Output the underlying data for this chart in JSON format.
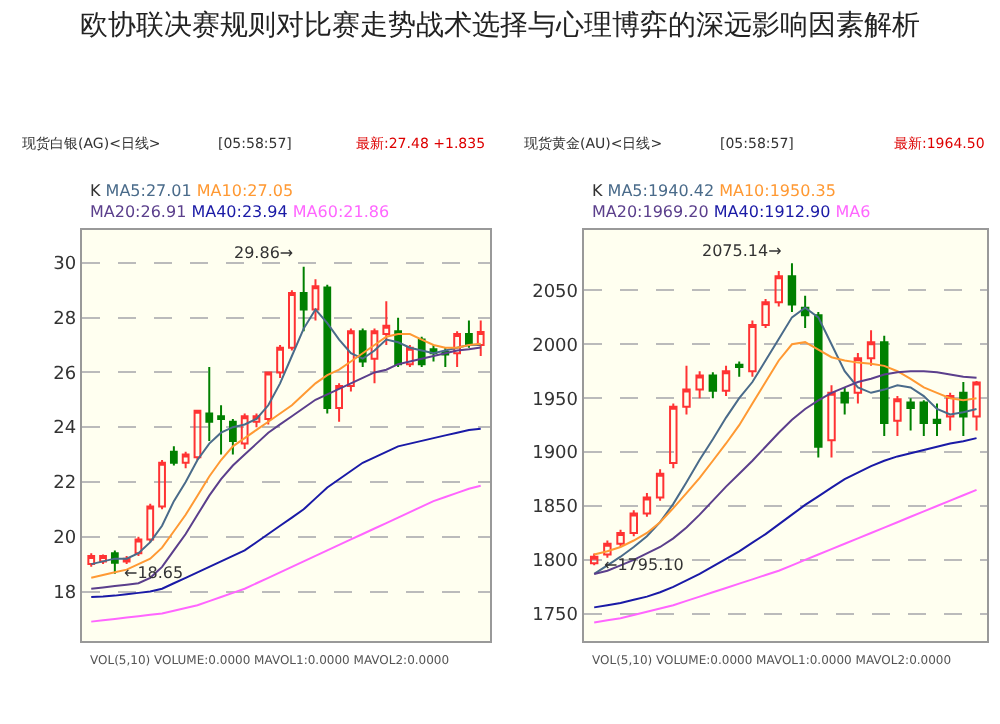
{
  "chart_data": [
    {
      "type": "candlestick",
      "title": "欧协联决赛规则对比赛走势战术选择与心理博弈的深远影响因素解析",
      "categories": [
        null,
        null,
        null,
        null,
        null,
        null,
        null,
        null,
        null,
        null,
        null,
        null,
        null,
        null,
        null,
        null,
        null,
        null,
        null,
        null,
        null,
        null,
        null,
        null,
        null,
        null,
        null,
        null,
        null,
        null,
        null,
        null,
        null,
        null
      ],
      "ohlc": [
        [
          19.0,
          19.4,
          18.9,
          19.3
        ],
        [
          19.1,
          19.35,
          19.0,
          19.3
        ],
        [
          19.4,
          19.5,
          18.65,
          19.05
        ],
        [
          19.1,
          19.3,
          19.0,
          19.2
        ],
        [
          19.4,
          20.0,
          19.3,
          19.9
        ],
        [
          19.9,
          21.2,
          19.8,
          21.1
        ],
        [
          21.1,
          22.8,
          21.0,
          22.7
        ],
        [
          23.1,
          23.3,
          22.6,
          22.7
        ],
        [
          22.7,
          23.1,
          22.5,
          23.0
        ],
        [
          22.9,
          24.6,
          22.8,
          24.6
        ],
        [
          24.5,
          26.2,
          23.5,
          24.2
        ],
        [
          24.4,
          24.8,
          23.0,
          24.3
        ],
        [
          24.2,
          24.3,
          23.0,
          23.5
        ],
        [
          23.4,
          24.5,
          23.2,
          24.4
        ],
        [
          24.2,
          24.5,
          24.0,
          24.4
        ],
        [
          24.3,
          26.0,
          24.1,
          26.0
        ],
        [
          26.0,
          27.0,
          25.8,
          26.9
        ],
        [
          26.9,
          29.0,
          26.8,
          28.9
        ],
        [
          28.9,
          29.86,
          27.5,
          28.3
        ],
        [
          28.3,
          29.4,
          27.9,
          29.15
        ],
        [
          29.1,
          29.2,
          24.5,
          24.7
        ],
        [
          24.7,
          25.6,
          24.2,
          25.5
        ],
        [
          25.5,
          27.6,
          25.3,
          27.5
        ],
        [
          27.5,
          27.6,
          26.2,
          26.4
        ],
        [
          26.5,
          27.6,
          25.6,
          27.5
        ],
        [
          27.4,
          28.6,
          27.0,
          27.7
        ],
        [
          27.5,
          28.0,
          26.2,
          26.3
        ],
        [
          26.3,
          27.0,
          26.2,
          26.9
        ],
        [
          27.2,
          27.3,
          26.2,
          26.3
        ],
        [
          26.85,
          27.0,
          26.4,
          26.7
        ],
        [
          26.75,
          26.9,
          26.2,
          26.65
        ],
        [
          26.7,
          27.5,
          26.2,
          27.4
        ],
        [
          27.4,
          27.9,
          26.9,
          27.0
        ],
        [
          27.0,
          27.9,
          26.6,
          27.48
        ]
      ],
      "colors": [
        "#ff3333",
        "#ff3333",
        "#008000",
        "#ff3333",
        "#ff3333",
        "#ff3333",
        "#ff3333",
        "#008000",
        "#ff3333",
        "#ff3333",
        "#008000",
        "#008000",
        "#008000",
        "#ff3333",
        "#ff3333",
        "#ff3333",
        "#ff3333",
        "#ff3333",
        "#008000",
        "#ff3333",
        "#008000",
        "#ff3333",
        "#ff3333",
        "#008000",
        "#ff3333",
        "#ff3333",
        "#008000",
        "#ff3333",
        "#008000",
        "#008000",
        "#008000",
        "#ff3333",
        "#008000",
        "#ff3333"
      ],
      "series": [
        {
          "type": "line",
          "name": "MA5:27.01",
          "color": "#4a6b8a",
          "values": [
            19.0,
            19.1,
            19.2,
            19.2,
            19.4,
            19.8,
            20.4,
            21.3,
            22.0,
            22.8,
            23.4,
            23.8,
            24.0,
            24.1,
            24.3,
            24.8,
            25.6,
            26.6,
            27.6,
            28.3,
            27.8,
            27.2,
            26.7,
            26.5,
            26.8,
            27.2,
            27.1,
            26.9,
            26.8,
            26.7,
            26.8,
            26.9,
            27.0,
            27.01
          ]
        },
        {
          "type": "line",
          "name": "MA10:27.05",
          "color": "#ff9933",
          "values": [
            18.5,
            18.6,
            18.7,
            18.8,
            19.0,
            19.2,
            19.6,
            20.2,
            20.8,
            21.5,
            22.2,
            22.8,
            23.3,
            23.6,
            23.9,
            24.2,
            24.5,
            24.8,
            25.2,
            25.6,
            25.9,
            26.1,
            26.4,
            26.7,
            27.0,
            27.3,
            27.4,
            27.4,
            27.2,
            27.0,
            26.9,
            26.9,
            27.0,
            27.05
          ]
        },
        {
          "type": "line",
          "name": "MA20:26.91",
          "color": "#5b3f8c",
          "values": [
            18.1,
            18.15,
            18.2,
            18.25,
            18.3,
            18.5,
            18.9,
            19.5,
            20.1,
            20.8,
            21.5,
            22.1,
            22.6,
            23.0,
            23.4,
            23.8,
            24.1,
            24.4,
            24.7,
            25.0,
            25.2,
            25.4,
            25.6,
            25.8,
            26.0,
            26.1,
            26.3,
            26.4,
            26.5,
            26.6,
            26.7,
            26.8,
            26.85,
            26.91
          ]
        },
        {
          "type": "line",
          "name": "MA40:23.94",
          "color": "#1a1aa6",
          "values": [
            17.8,
            17.82,
            17.85,
            17.9,
            17.95,
            18.0,
            18.1,
            18.3,
            18.5,
            18.7,
            18.9,
            19.1,
            19.3,
            19.5,
            19.8,
            20.1,
            20.4,
            20.7,
            21.0,
            21.4,
            21.8,
            22.1,
            22.4,
            22.7,
            22.9,
            23.1,
            23.3,
            23.4,
            23.5,
            23.6,
            23.7,
            23.8,
            23.9,
            23.94
          ]
        },
        {
          "type": "line",
          "name": "MA60:21.86",
          "color": "#ff66ff",
          "values": [
            16.9,
            16.95,
            17.0,
            17.05,
            17.1,
            17.15,
            17.2,
            17.3,
            17.4,
            17.5,
            17.65,
            17.8,
            17.95,
            18.1,
            18.3,
            18.5,
            18.7,
            18.9,
            19.1,
            19.3,
            19.5,
            19.7,
            19.9,
            20.1,
            20.3,
            20.5,
            20.7,
            20.9,
            21.1,
            21.3,
            21.45,
            21.6,
            21.75,
            21.86
          ]
        }
      ],
      "ylim": [
        16.2,
        31.2
      ],
      "yticks": [
        18,
        20,
        22,
        24,
        26,
        28,
        30
      ],
      "grid": "y",
      "tick_labels": "y",
      "annotations": [
        "现货白银(AG)<日线>",
        "[05:58:57]",
        "最新:27.48 +1.835",
        "K",
        "VOL(5,10) VOLUME:0.0000 MAVOL1:0.0000 MAVOL2:0.0000",
        "29.86→",
        "←18.65"
      ]
    },
    {
      "type": "candlestick",
      "categories": [
        null,
        null,
        null,
        null,
        null,
        null,
        null,
        null,
        null,
        null,
        null,
        null,
        null,
        null,
        null,
        null,
        null,
        null,
        null,
        null,
        null,
        null,
        null,
        null,
        null,
        null,
        null,
        null,
        null,
        null
      ],
      "ohlc": [
        [
          1797,
          1806,
          1795.1,
          1803
        ],
        [
          1805,
          1818,
          1802,
          1815
        ],
        [
          1815,
          1828,
          1812,
          1825
        ],
        [
          1825,
          1846,
          1822,
          1843
        ],
        [
          1843,
          1862,
          1840,
          1858
        ],
        [
          1858,
          1884,
          1855,
          1880
        ],
        [
          1890,
          1945,
          1885,
          1942
        ],
        [
          1942,
          1980,
          1935,
          1958
        ],
        [
          1958,
          1975,
          1950,
          1971
        ],
        [
          1971,
          1974,
          1950,
          1957
        ],
        [
          1957,
          1980,
          1952,
          1975
        ],
        [
          1981,
          1984,
          1970,
          1979
        ],
        [
          1975,
          2022,
          1970,
          2018
        ],
        [
          2018,
          2042,
          2015,
          2039
        ],
        [
          2039,
          2068,
          2035,
          2063
        ],
        [
          2063,
          2075.14,
          2030,
          2037
        ],
        [
          2034,
          2045,
          2015,
          2027
        ],
        [
          2027,
          2030,
          1895,
          1905
        ],
        [
          1911,
          1962,
          1895,
          1955
        ],
        [
          1955,
          1960,
          1935,
          1946
        ],
        [
          1955,
          1992,
          1945,
          1987
        ],
        [
          1987,
          2013,
          1980,
          2002
        ],
        [
          2002,
          2008,
          1915,
          1927
        ],
        [
          1929,
          1952,
          1915,
          1949
        ],
        [
          1946,
          1950,
          1920,
          1941
        ],
        [
          1946,
          1948,
          1915,
          1927
        ],
        [
          1930,
          1945,
          1915,
          1927
        ],
        [
          1933,
          1955,
          1920,
          1952
        ],
        [
          1955,
          1965,
          1915,
          1933
        ],
        [
          1933,
          1966,
          1920,
          1964.5
        ]
      ],
      "colors": [
        "#ff3333",
        "#ff3333",
        "#ff3333",
        "#ff3333",
        "#ff3333",
        "#ff3333",
        "#ff3333",
        "#ff3333",
        "#ff3333",
        "#008000",
        "#ff3333",
        "#008000",
        "#ff3333",
        "#ff3333",
        "#ff3333",
        "#008000",
        "#008000",
        "#008000",
        "#ff3333",
        "#008000",
        "#ff3333",
        "#ff3333",
        "#008000",
        "#ff3333",
        "#008000",
        "#008000",
        "#008000",
        "#ff3333",
        "#008000",
        "#ff3333"
      ],
      "series": [
        {
          "type": "line",
          "name": "MA5:1940.42",
          "color": "#4a6b8a",
          "values": [
            1787,
            1795,
            1803,
            1812,
            1822,
            1835,
            1852,
            1872,
            1893,
            1912,
            1932,
            1950,
            1965,
            1985,
            2005,
            2025,
            2034,
            2025,
            2000,
            1975,
            1960,
            1955,
            1958,
            1962,
            1960,
            1952,
            1940,
            1935,
            1937,
            1940
          ]
        },
        {
          "type": "line",
          "name": "MA10:1950.35",
          "color": "#ff9933",
          "values": [
            1805,
            1808,
            1812,
            1818,
            1825,
            1835,
            1848,
            1862,
            1876,
            1892,
            1908,
            1925,
            1945,
            1965,
            1985,
            2000,
            2002,
            1995,
            1988,
            1985,
            1983,
            1982,
            1980,
            1975,
            1968,
            1960,
            1955,
            1950,
            1948,
            1950
          ]
        },
        {
          "type": "line",
          "name": "MA20:1969.20",
          "color": "#5b3f8c",
          "values": [
            1787,
            1790,
            1795,
            1800,
            1806,
            1812,
            1820,
            1830,
            1842,
            1855,
            1868,
            1880,
            1892,
            1905,
            1918,
            1930,
            1940,
            1948,
            1955,
            1960,
            1965,
            1968,
            1972,
            1974,
            1975,
            1975,
            1974,
            1972,
            1970,
            1969
          ]
        },
        {
          "type": "line",
          "name": "MA40:1912.90",
          "color": "#1a1aa6",
          "values": [
            1756,
            1758,
            1760,
            1763,
            1766,
            1770,
            1775,
            1781,
            1787,
            1794,
            1801,
            1808,
            1816,
            1824,
            1833,
            1842,
            1851,
            1859,
            1867,
            1875,
            1881,
            1887,
            1892,
            1896,
            1899,
            1902,
            1905,
            1908,
            1910,
            1913
          ]
        },
        {
          "type": "line",
          "name": "MA6",
          "color": "#ff66ff",
          "values": [
            1742,
            1744,
            1746,
            1749,
            1752,
            1755,
            1758,
            1762,
            1766,
            1770,
            1774,
            1778,
            1782,
            1786,
            1790,
            1795,
            1800,
            1805,
            1810,
            1815,
            1820,
            1825,
            1830,
            1835,
            1840,
            1845,
            1850,
            1855,
            1860,
            1865
          ]
        }
      ],
      "ylim": [
        1725,
        2106
      ],
      "yticks": [
        1750,
        1800,
        1850,
        1900,
        1950,
        2000,
        2050
      ],
      "grid": "y",
      "tick_labels": "y",
      "annotations": [
        "现货黄金(AU)<日线>",
        "[05:58:57]",
        "最新:1964.50",
        "K",
        "VOL(5,10) VOLUME:0.0000 MAVOL1:0.0000 MAVOL2:0.0000",
        "2075.14→",
        "←1795.10"
      ]
    }
  ]
}
